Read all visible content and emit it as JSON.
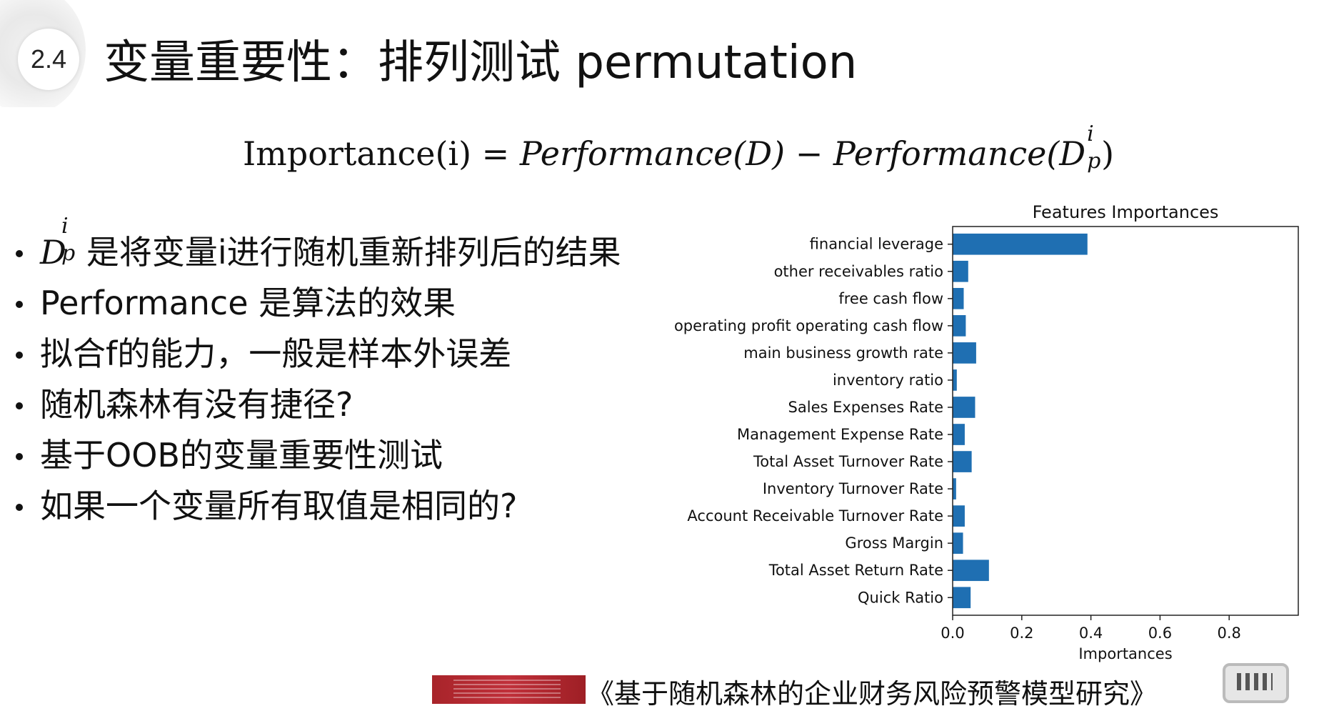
{
  "badge": {
    "number": "2.4"
  },
  "title": "变量重要性：排列测试 permutation",
  "formula": {
    "lhs": "Importance(i)",
    "equals": "=",
    "term1": "Performance(D)",
    "minus": "−",
    "term2_head": "Performance(D",
    "term2_sup": "i",
    "term2_sub": "p",
    "term2_tail": ")"
  },
  "bullets": {
    "b1_symbol": "D",
    "b1_sup": "i",
    "b1_sub": "p",
    "b1_text": "是将变量i进行随机重新排列后的结果",
    "b2": "Performance 是算法的效果",
    "b3": "拟合f的能力，一般是样本外误差",
    "b4": "随机森林有没有捷径?",
    "b5": "基于OOB的变量重要性测试",
    "b6": "如果一个变量所有取值是相同的?"
  },
  "chart_data": {
    "type": "bar",
    "orientation": "horizontal",
    "title": "Features Importances",
    "xlabel": "Importances",
    "ylabel": "",
    "xlim": [
      0,
      1.0
    ],
    "xticks": [
      0.0,
      0.2,
      0.4,
      0.6,
      0.8
    ],
    "xtick_labels": [
      "0.0",
      "0.2",
      "0.4",
      "0.6",
      "0.8"
    ],
    "grid": false,
    "bar_color": "#1f6fb2",
    "categories": [
      "financial leverage",
      "other receivables ratio",
      "free cash flow",
      "operating profit operating cash flow",
      "main business growth rate",
      "inventory ratio",
      "Sales Expenses Rate",
      "Management Expense Rate",
      "Total Asset Turnover Rate",
      "Inventory Turnover Rate",
      "Account Receivable Turnover Rate",
      "Gross Margin",
      "Total Asset Return Rate",
      "Quick Ratio"
    ],
    "values": [
      0.39,
      0.045,
      0.032,
      0.038,
      0.068,
      0.012,
      0.065,
      0.035,
      0.055,
      0.01,
      0.035,
      0.03,
      0.105,
      0.052
    ]
  },
  "footer": {
    "caption": "《基于随机森林的企业财务风险预警模型研究》"
  }
}
